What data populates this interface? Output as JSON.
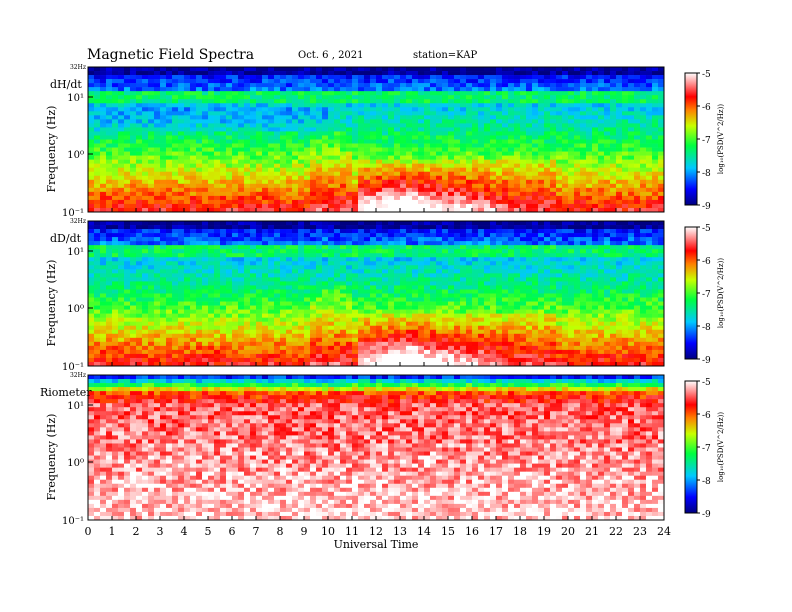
{
  "header": {
    "title": "Magnetic  Field  Spectra",
    "date": "Oct. 6  , 2021",
    "station": "station=KAP"
  },
  "chart_data": [
    {
      "type": "heatmap",
      "panel_label": "dH/dt",
      "ylabel": "Frequency  (Hz)",
      "y_top_label": "32Hz",
      "y_ticks": [
        "10¹",
        "10⁰",
        "10⁻¹"
      ],
      "x_ticks": [
        "0",
        "1",
        "2",
        "3",
        "4",
        "5",
        "6",
        "7",
        "8",
        "9",
        "10",
        "11",
        "12",
        "13",
        "14",
        "15",
        "16",
        "17",
        "18",
        "19",
        "20",
        "21",
        "22",
        "23",
        "24"
      ],
      "xlim": [
        0,
        24
      ],
      "colorbar": {
        "label": "log₁₀(PSD(V^2/Hz))",
        "ticks": [
          "-5",
          "-6",
          "-7",
          "-8",
          "-9"
        ],
        "range": [
          -9,
          -5
        ]
      }
    },
    {
      "type": "heatmap",
      "panel_label": "dD/dt",
      "ylabel": "Frequency  (Hz)",
      "y_top_label": "32Hz",
      "y_ticks": [
        "10¹",
        "10⁰",
        "10⁻¹"
      ],
      "x_ticks": [
        "0",
        "1",
        "2",
        "3",
        "4",
        "5",
        "6",
        "7",
        "8",
        "9",
        "10",
        "11",
        "12",
        "13",
        "14",
        "15",
        "16",
        "17",
        "18",
        "19",
        "20",
        "21",
        "22",
        "23",
        "24"
      ],
      "xlim": [
        0,
        24
      ],
      "colorbar": {
        "label": "log₁₀(PSD(V^2/Hz))",
        "ticks": [
          "-5",
          "-6",
          "-7",
          "-8",
          "-9"
        ],
        "range": [
          -9,
          -5
        ]
      }
    },
    {
      "type": "heatmap",
      "panel_label": "Riometer",
      "ylabel": "Frequency  (Hz)",
      "y_top_label": "32Hz",
      "y_ticks": [
        "10¹",
        "10⁰",
        "10⁻¹"
      ],
      "x_ticks": [
        "0",
        "1",
        "2",
        "3",
        "4",
        "5",
        "6",
        "7",
        "8",
        "9",
        "10",
        "11",
        "12",
        "13",
        "14",
        "15",
        "16",
        "17",
        "18",
        "19",
        "20",
        "21",
        "22",
        "23",
        "24"
      ],
      "xlim": [
        0,
        24
      ],
      "xlabel": "Universal Time",
      "colorbar": {
        "label": "log₁₀(PSD(V^2/Hz))",
        "ticks": [
          "-5",
          "-6",
          "-7",
          "-8",
          "-9"
        ],
        "range": [
          -9,
          -5
        ]
      }
    }
  ]
}
